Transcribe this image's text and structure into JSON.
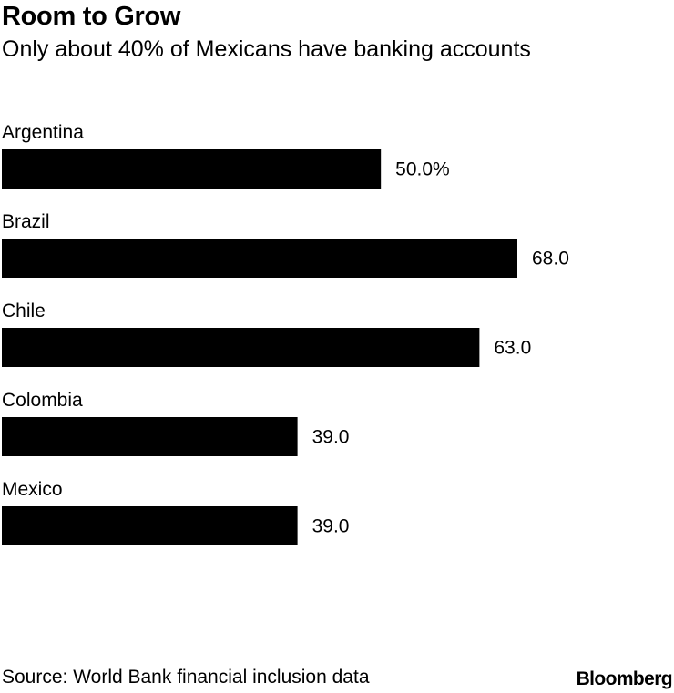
{
  "chart_data": {
    "type": "bar",
    "orientation": "horizontal",
    "title": "Room to Grow",
    "subtitle": "Only about 40% of Mexicans have banking accounts",
    "categories": [
      "Argentina",
      "Brazil",
      "Chile",
      "Colombia",
      "Mexico"
    ],
    "values": [
      50.0,
      68.0,
      63.0,
      39.0,
      39.0
    ],
    "value_labels": [
      "50.0%",
      "68.0",
      "63.0",
      "39.0",
      "39.0"
    ],
    "xlim": [
      0,
      68
    ],
    "bar_color": "#000000",
    "grid": false,
    "legend": "none"
  },
  "footer": {
    "source": "Source: World Bank financial inclusion data",
    "brand": "Bloomberg"
  }
}
